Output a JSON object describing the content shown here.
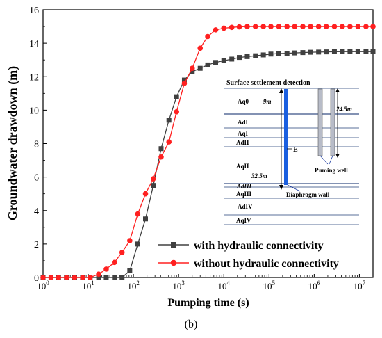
{
  "caption": "(b)",
  "chart_data": {
    "type": "line",
    "xlabel": "Pumping time (s)",
    "ylabel": "Groundwater drawdown (m)",
    "xscale": "log",
    "xlim": [
      1,
      20000000
    ],
    "ylim": [
      0,
      16
    ],
    "x_ticks": [
      1,
      10,
      100,
      1000,
      10000,
      100000,
      1000000,
      10000000
    ],
    "x_tick_labels": [
      {
        "base": "10",
        "exp": "0"
      },
      {
        "base": "10",
        "exp": "1"
      },
      {
        "base": "10",
        "exp": "2"
      },
      {
        "base": "10",
        "exp": "3"
      },
      {
        "base": "10",
        "exp": "4"
      },
      {
        "base": "10",
        "exp": "5"
      },
      {
        "base": "10",
        "exp": "6"
      },
      {
        "base": "10",
        "exp": "7"
      }
    ],
    "y_ticks": [
      0,
      2,
      4,
      6,
      8,
      10,
      12,
      14,
      16
    ],
    "y_tick_labels": [
      "0",
      "2",
      "4",
      "6",
      "8",
      "10",
      "12",
      "14",
      "16"
    ],
    "legend_position": "bottom-right",
    "series": [
      {
        "name": "with hydraulic connectivity",
        "color": "#404040",
        "marker": "square",
        "x": [
          1,
          1.5,
          2.2,
          3.3,
          5,
          7.5,
          11,
          17,
          25,
          38,
          56,
          83,
          125,
          185,
          275,
          410,
          610,
          900,
          1340,
          2000,
          3000,
          4400,
          6600,
          10000,
          15000,
          22000,
          33000,
          50000,
          75000,
          110000,
          165000,
          250000,
          370000,
          560000,
          830000,
          1250000,
          1850000,
          2800000,
          4200000,
          6200000,
          9300000,
          14000000,
          20000000
        ],
        "y": [
          0,
          0,
          0,
          0,
          0,
          0,
          0,
          0,
          0,
          0,
          0,
          0.4,
          2.0,
          3.5,
          5.5,
          7.7,
          9.4,
          10.8,
          11.8,
          12.3,
          12.5,
          12.7,
          12.85,
          12.95,
          13.05,
          13.15,
          13.2,
          13.25,
          13.3,
          13.35,
          13.38,
          13.4,
          13.42,
          13.44,
          13.46,
          13.47,
          13.48,
          13.49,
          13.5,
          13.5,
          13.5,
          13.5,
          13.5
        ]
      },
      {
        "name": "without hydraulic connectivity",
        "color": "#ff2020",
        "marker": "circle",
        "x": [
          1,
          1.5,
          2.2,
          3.3,
          5,
          7.5,
          11,
          17,
          25,
          38,
          56,
          83,
          125,
          185,
          275,
          410,
          610,
          900,
          1340,
          2000,
          3000,
          4400,
          6600,
          10000,
          15000,
          22000,
          33000,
          50000,
          75000,
          110000,
          165000,
          250000,
          370000,
          560000,
          830000,
          1250000,
          1850000,
          2800000,
          4200000,
          6200000,
          9300000,
          14000000,
          20000000
        ],
        "y": [
          0,
          0,
          0,
          0,
          0,
          0,
          0,
          0.2,
          0.5,
          0.9,
          1.5,
          2.2,
          3.8,
          5.0,
          5.9,
          7.2,
          8.1,
          9.9,
          11.6,
          12.5,
          13.7,
          14.4,
          14.8,
          14.9,
          14.95,
          14.98,
          15.0,
          15.0,
          15.0,
          15.0,
          15.0,
          15.0,
          15.0,
          15.0,
          15.0,
          15.0,
          15.0,
          15.0,
          15.0,
          15.0,
          15.0,
          15.0,
          15.0
        ]
      }
    ]
  },
  "inset": {
    "title": "Surface settlement detection",
    "layers": [
      "Aq0",
      "AdI",
      "AqI",
      "AdII",
      "AqII",
      "AdIII",
      "AqIII",
      "AdIV",
      "AqIV"
    ],
    "depth_wall": "32.5m",
    "depth_top": "9m",
    "depth_well": "24.5m",
    "point_label": "E",
    "well_label": "Puming well",
    "wall_label": "Diaphragm wall"
  }
}
